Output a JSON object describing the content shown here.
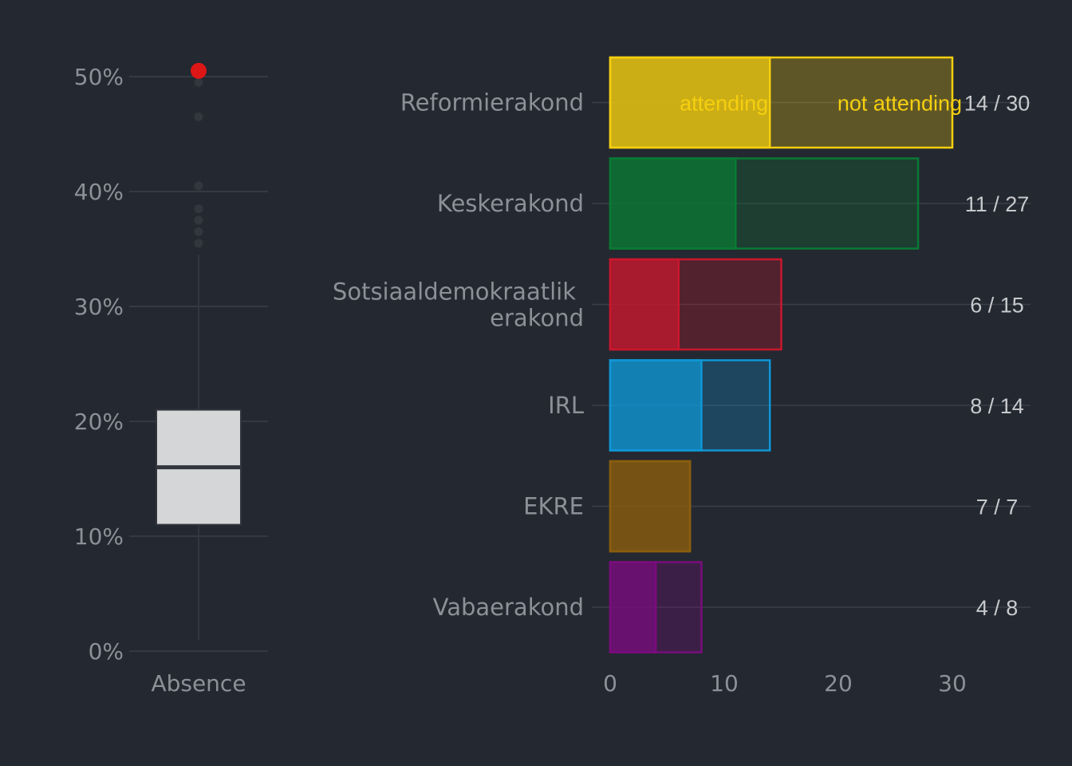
{
  "chart_data": [
    {
      "type": "box",
      "xlabel": "Absence",
      "y_ticks": [
        "0%",
        "10%",
        "20%",
        "30%",
        "40%",
        "50%"
      ],
      "ylim": [
        0,
        50
      ],
      "box": {
        "q1": 11,
        "median": 16,
        "q3": 21,
        "whisker_low": 1,
        "whisker_high": 34.5
      },
      "outliers": [
        35.5,
        36.5,
        37.5,
        38.5,
        40.5,
        46.5,
        49.5
      ],
      "highlight": {
        "value": 50.5,
        "color": "#dd1616"
      },
      "grid": true
    },
    {
      "type": "bar",
      "orientation": "horizontal",
      "stacked": true,
      "x_ticks": [
        "0",
        "10",
        "20",
        "30"
      ],
      "xlim": [
        0,
        30
      ],
      "grid": true,
      "legend": {
        "attending_label": "attending",
        "not_attending_label": "not attending",
        "placement": "inside-top-bar"
      },
      "categories": [
        {
          "name": "Reformierakond",
          "attending": 14,
          "total": 30,
          "label": "14 / 30",
          "color": "#f5cf0f"
        },
        {
          "name": "Keskerakond",
          "attending": 11,
          "total": 27,
          "label": "11 / 27",
          "color": "#0a7a34"
        },
        {
          "name": "Sotsiaaldemokraatlik erakond",
          "name_lines": [
            "Sotsiaaldemokraatlik",
            "erakond"
          ],
          "attending": 6,
          "total": 15,
          "label": "6 / 15",
          "color": "#c9172c"
        },
        {
          "name": "IRL",
          "attending": 8,
          "total": 14,
          "label": "8 / 14",
          "color": "#0f97d6"
        },
        {
          "name": "EKRE",
          "attending": 7,
          "total": 7,
          "label": "7 / 7",
          "color": "#8a5e0e"
        },
        {
          "name": "Vabaerakond",
          "attending": 4,
          "total": 8,
          "label": "4 / 8",
          "color": "#7a0c7e"
        }
      ]
    }
  ]
}
